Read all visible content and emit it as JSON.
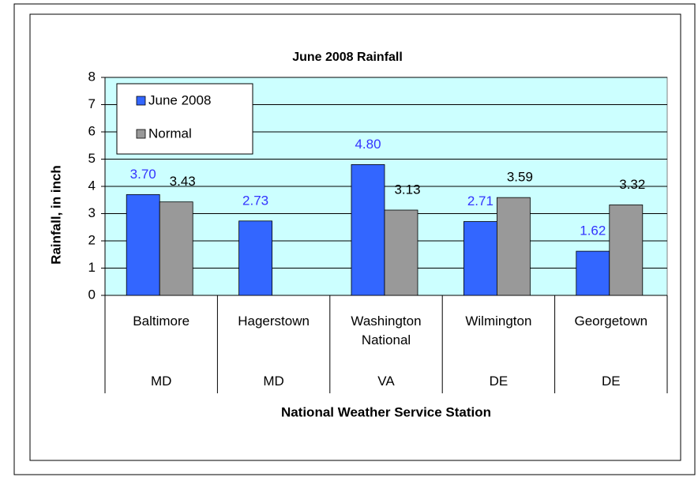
{
  "chart_data": {
    "type": "bar",
    "title": "June 2008 Rainfall",
    "x_label": "National Weather Service Station",
    "y_label": "Rainfall, in inch",
    "categories": [
      "Baltimore",
      "Hagerstown",
      "Washington National",
      "Wilmington",
      "Georgetown"
    ],
    "states": [
      "MD",
      "MD",
      "VA",
      "DE",
      "DE"
    ],
    "series": [
      {
        "name": "June 2008",
        "color": "#3366ff",
        "label_color": "#3333ff",
        "values": [
          3.7,
          2.73,
          4.8,
          2.71,
          1.62
        ],
        "value_labels": [
          "3.70",
          "2.73",
          "4.80",
          "2.71",
          "1.62"
        ]
      },
      {
        "name": "Normal",
        "color": "#999999",
        "label_color": "#000000",
        "values": [
          3.43,
          null,
          3.13,
          3.59,
          3.32
        ]
      }
    ],
    "ylim": [
      0,
      8
    ],
    "yticks": [
      0,
      1,
      2,
      3,
      4,
      5,
      6,
      7,
      8
    ],
    "grid": true,
    "legend": "top-left",
    "plot_background": "#ccffff"
  }
}
